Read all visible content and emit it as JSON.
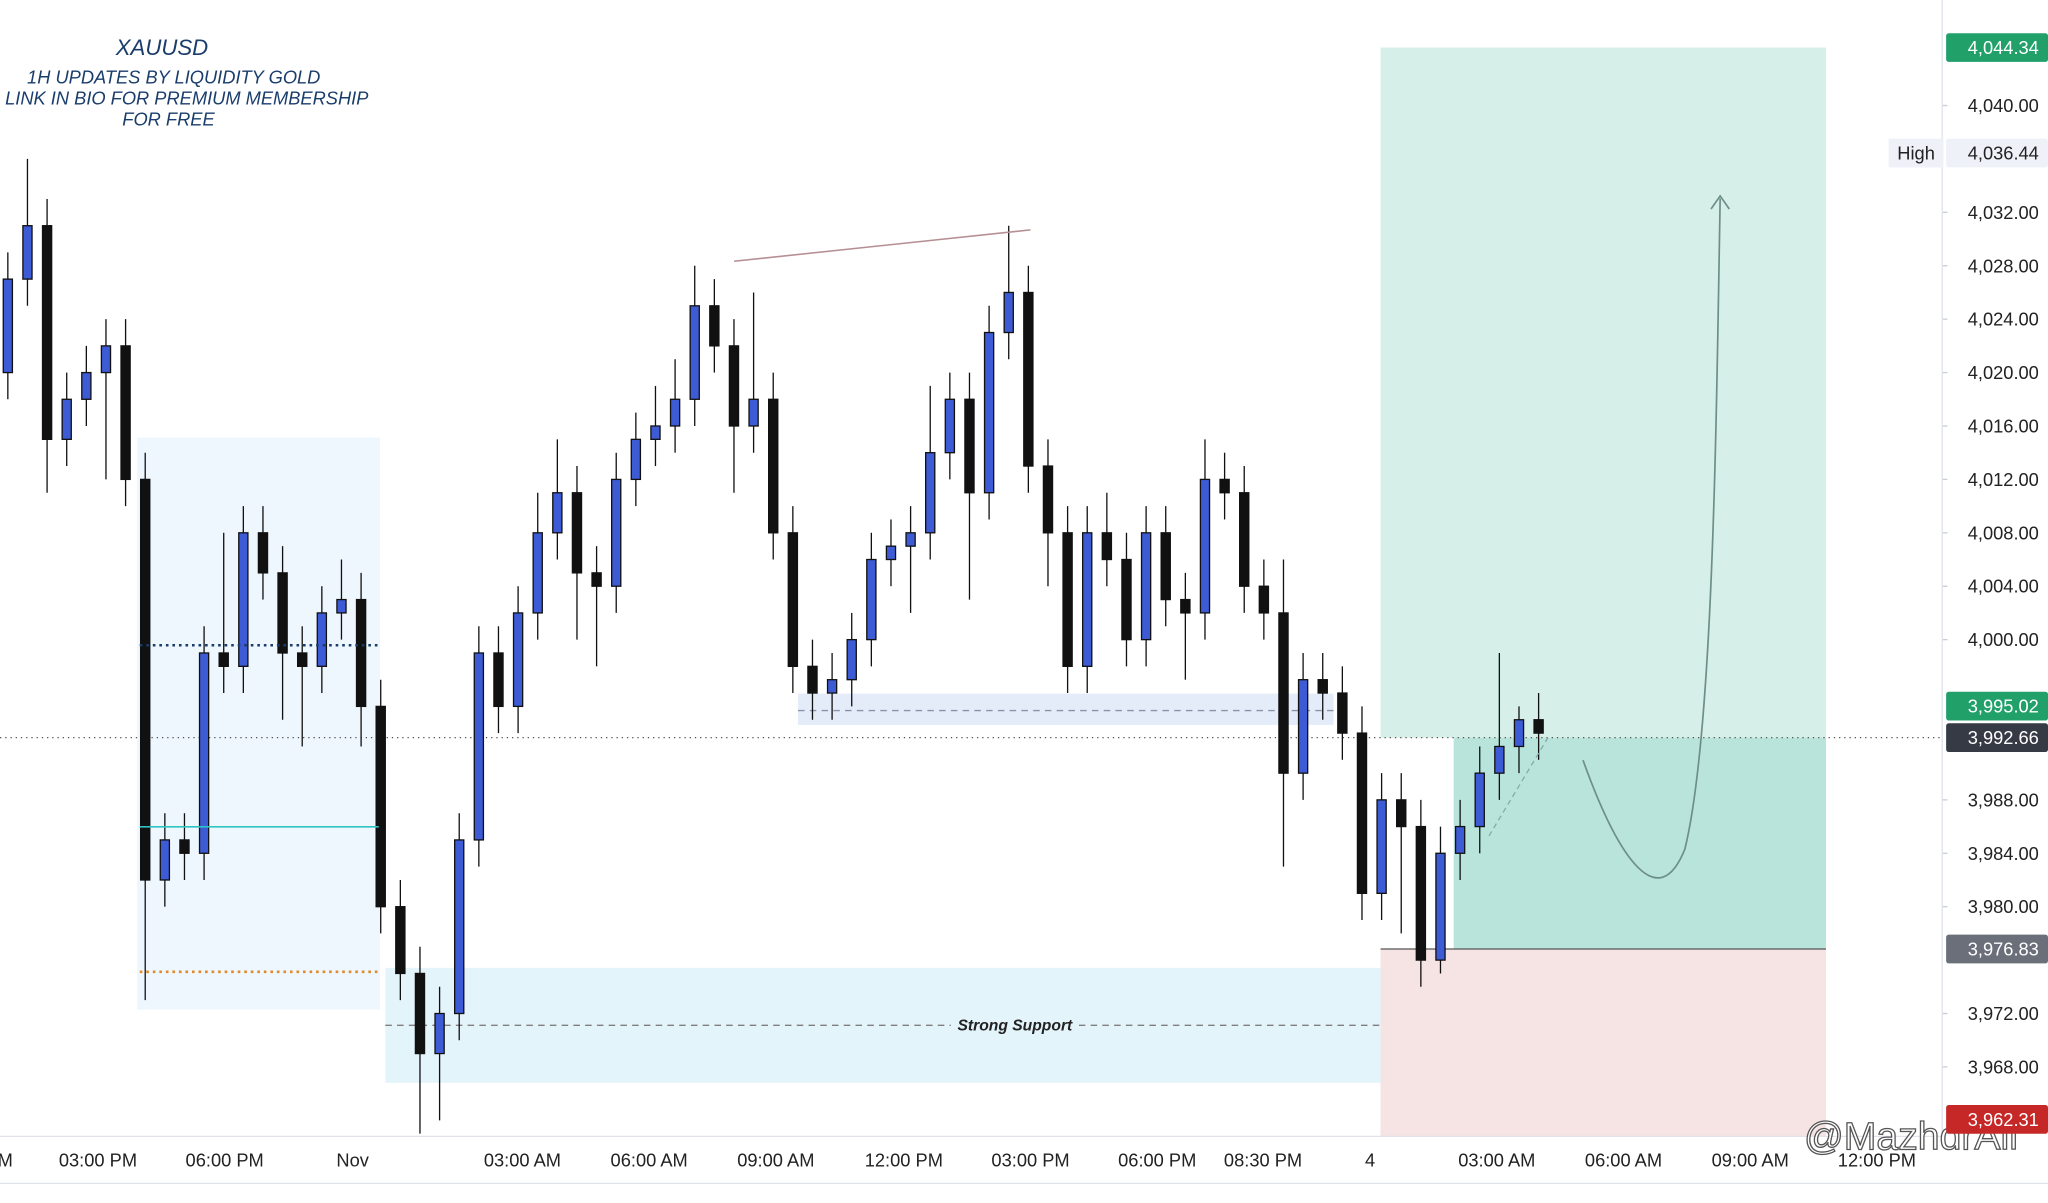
{
  "chart_data": {
    "type": "candlestick",
    "title": "XAUUSD",
    "subtitle": [
      "1H UPDATES BY LIQUIDITY GOLD",
      "LINK IN BIO FOR PREMIUM MEMBERSHIP",
      "FOR FREE"
    ],
    "annotation": "Strong Support",
    "watermark": "@MazhdrAli",
    "ylim": [
      3962.8,
      4047.9
    ],
    "yticks": [
      {
        "value": 4040,
        "label": "4,040.00"
      },
      {
        "value": 4032,
        "label": "4,032.00"
      },
      {
        "value": 4028,
        "label": "4,028.00"
      },
      {
        "value": 4024,
        "label": "4,024.00"
      },
      {
        "value": 4020,
        "label": "4,020.00"
      },
      {
        "value": 4016,
        "label": "4,016.00"
      },
      {
        "value": 4012,
        "label": "4,012.00"
      },
      {
        "value": 4008,
        "label": "4,008.00"
      },
      {
        "value": 4004,
        "label": "4,004.00"
      },
      {
        "value": 4000,
        "label": "4,000.00"
      },
      {
        "value": 3988,
        "label": "3,988.00"
      },
      {
        "value": 3984,
        "label": "3,984.00"
      },
      {
        "value": 3980,
        "label": "3,980.00"
      },
      {
        "value": 3972,
        "label": "3,972.00"
      },
      {
        "value": 3968,
        "label": "3,968.00"
      }
    ],
    "time_labels": [
      "M",
      "03:00 PM",
      "06:00 PM",
      "Nov",
      "03:00 AM",
      "06:00 AM",
      "09:00 AM",
      "12:00 PM",
      "03:00 PM",
      "06:00 PM",
      "08:30 PM",
      "4",
      "03:00 AM",
      "06:00 AM",
      "09:00 AM",
      "12:00 PM"
    ],
    "up_color": "#3d5bd4",
    "down_color": "#111111",
    "price_tags": [
      {
        "value": 4044.34,
        "label": "4,044.34",
        "color": "#21a06a"
      },
      {
        "value": 4036.44,
        "label": "4,036.44",
        "name": "High",
        "color": "#eef1f8"
      },
      {
        "value": 3995.02,
        "label": "3,995.02",
        "color": "#21a06a"
      },
      {
        "value": 3992.66,
        "label": "3,992.66",
        "color": "#363a45"
      },
      {
        "value": 3976.83,
        "label": "3,976.83",
        "color": "#6b6f7a"
      },
      {
        "value": 3962.31,
        "label": "3,962.31",
        "color": "#c62828"
      }
    ],
    "ohlc": [
      [
        4020,
        4029,
        4018,
        4027
      ],
      [
        4027,
        4036,
        4025,
        4031
      ],
      [
        4031,
        4033,
        4011,
        4015
      ],
      [
        4015,
        4020,
        4013,
        4018
      ],
      [
        4018,
        4022,
        4016,
        4020
      ],
      [
        4020,
        4024,
        4012,
        4022
      ],
      [
        4022,
        4024,
        4010,
        4012
      ],
      [
        4012,
        4014,
        3973,
        3982
      ],
      [
        3982,
        3987,
        3980,
        3985
      ],
      [
        3985,
        3987,
        3982,
        3984
      ],
      [
        3984,
        4001,
        3982,
        3999
      ],
      [
        3999,
        4008,
        3996,
        3998
      ],
      [
        3998,
        4010,
        3996,
        4008
      ],
      [
        4008,
        4010,
        4003,
        4005
      ],
      [
        4005,
        4007,
        3994,
        3999
      ],
      [
        3999,
        4001,
        3992,
        3998
      ],
      [
        3998,
        4004,
        3996,
        4002
      ],
      [
        4002,
        4006,
        4000,
        4003
      ],
      [
        4003,
        4005,
        3992,
        3995
      ],
      [
        3995,
        3997,
        3978,
        3980
      ],
      [
        3980,
        3982,
        3973,
        3975
      ],
      [
        3975,
        3977,
        3963,
        3969
      ],
      [
        3969,
        3974,
        3964,
        3972
      ],
      [
        3972,
        3987,
        3970,
        3985
      ],
      [
        3985,
        4001,
        3983,
        3999
      ],
      [
        3999,
        4001,
        3993,
        3995
      ],
      [
        3995,
        4004,
        3993,
        4002
      ],
      [
        4002,
        4011,
        4000,
        4008
      ],
      [
        4008,
        4015,
        4006,
        4011
      ],
      [
        4011,
        4013,
        4000,
        4005
      ],
      [
        4005,
        4007,
        3998,
        4004
      ],
      [
        4004,
        4014,
        4002,
        4012
      ],
      [
        4012,
        4017,
        4010,
        4015
      ],
      [
        4015,
        4019,
        4013,
        4016
      ],
      [
        4016,
        4021,
        4014,
        4018
      ],
      [
        4018,
        4028,
        4016,
        4025
      ],
      [
        4025,
        4027,
        4020,
        4022
      ],
      [
        4022,
        4024,
        4011,
        4016
      ],
      [
        4016,
        4026,
        4014,
        4018
      ],
      [
        4018,
        4020,
        4006,
        4008
      ],
      [
        4008,
        4010,
        3996,
        3998
      ],
      [
        3998,
        4000,
        3994,
        3996
      ],
      [
        3996,
        3999,
        3994,
        3997
      ],
      [
        3997,
        4002,
        3995,
        4000
      ],
      [
        4000,
        4008,
        3998,
        4006
      ],
      [
        4006,
        4009,
        4004,
        4007
      ],
      [
        4007,
        4010,
        4002,
        4008
      ],
      [
        4008,
        4019,
        4006,
        4014
      ],
      [
        4014,
        4020,
        4012,
        4018
      ],
      [
        4018,
        4020,
        4003,
        4011
      ],
      [
        4011,
        4025,
        4009,
        4023
      ],
      [
        4023,
        4031,
        4021,
        4026
      ],
      [
        4026,
        4028,
        4011,
        4013
      ],
      [
        4013,
        4015,
        4004,
        4008
      ],
      [
        4008,
        4010,
        3996,
        3998
      ],
      [
        3998,
        4010,
        3996,
        4008
      ],
      [
        4008,
        4011,
        4004,
        4006
      ],
      [
        4006,
        4008,
        3998,
        4000
      ],
      [
        4000,
        4010,
        3998,
        4008
      ],
      [
        4008,
        4010,
        4001,
        4003
      ],
      [
        4003,
        4005,
        3997,
        4002
      ],
      [
        4002,
        4015,
        4000,
        4012
      ],
      [
        4012,
        4014,
        4009,
        4011
      ],
      [
        4011,
        4013,
        4002,
        4004
      ],
      [
        4004,
        4006,
        4000,
        4002
      ],
      [
        4002,
        4006,
        3983,
        3990
      ],
      [
        3990,
        3999,
        3988,
        3997
      ],
      [
        3997,
        3999,
        3994,
        3996
      ],
      [
        3996,
        3998,
        3991,
        3993
      ],
      [
        3993,
        3995,
        3979,
        3981
      ],
      [
        3981,
        3990,
        3979,
        3988
      ],
      [
        3988,
        3990,
        3978,
        3986
      ],
      [
        3986,
        3988,
        3974,
        3976
      ],
      [
        3976,
        3986,
        3975,
        3984
      ],
      [
        3984,
        3988,
        3982,
        3986
      ],
      [
        3986,
        3992,
        3984,
        3990
      ],
      [
        3990,
        3999,
        3988,
        3992
      ],
      [
        3992,
        3995,
        3990,
        3994
      ],
      [
        3994,
        3996,
        3991,
        3993
      ]
    ]
  }
}
